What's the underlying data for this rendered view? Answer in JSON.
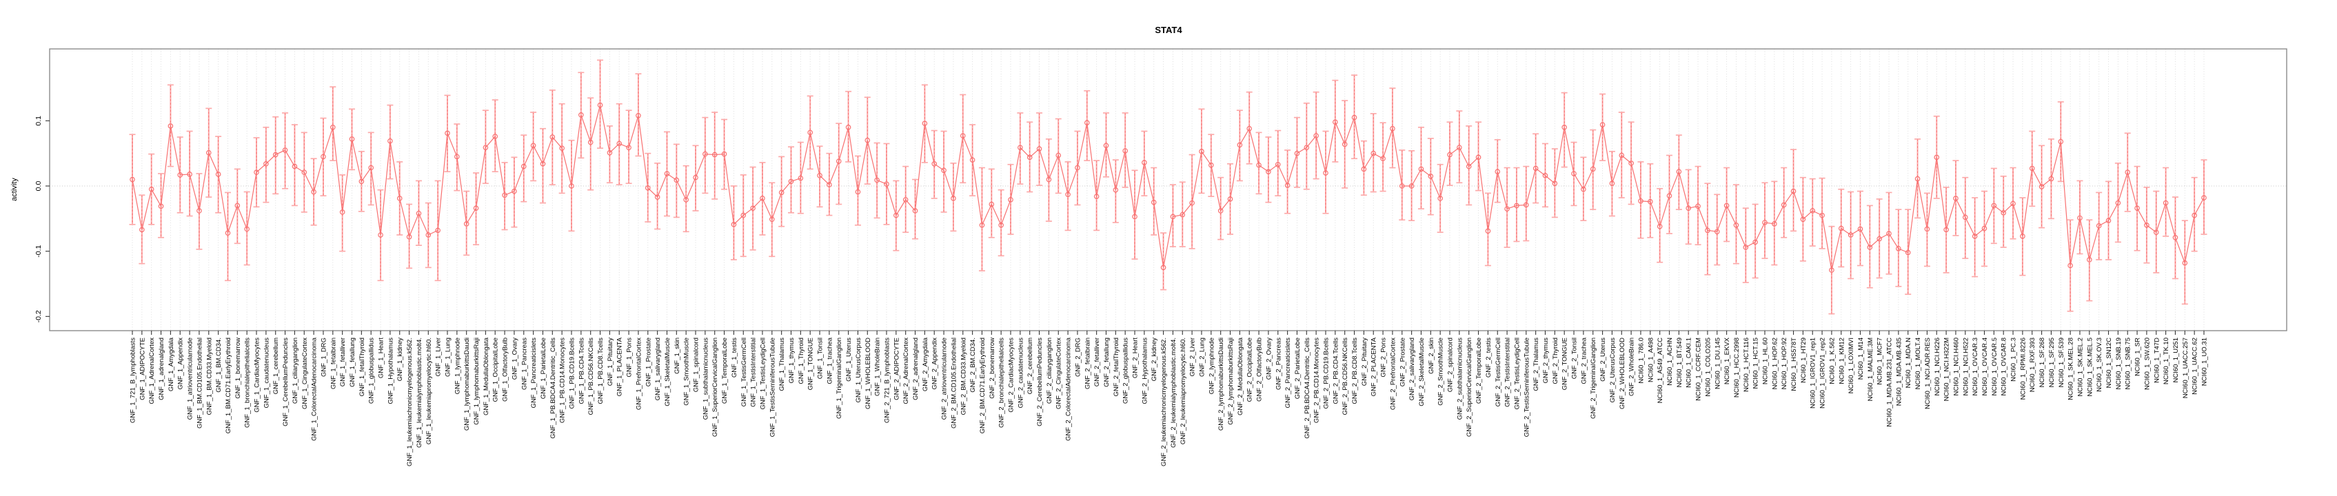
{
  "title": "STAT4",
  "chart_data": {
    "type": "scatter",
    "title": "STAT4",
    "xlabel": "",
    "ylabel": "activity",
    "ylim": [
      -0.225,
      0.21
    ],
    "yticks": [
      0.1,
      0.0,
      -0.1,
      -0.2
    ],
    "ytick_labels": [
      "0.1",
      "0.0",
      "-0.1",
      "-0.2"
    ],
    "grid": "dotted vertical line at every category; dotted horizontal line at y=0",
    "legend_position": "none",
    "marker": "open-circle",
    "error_bars": true,
    "colors": {
      "series": "#f87070",
      "errorbar": "#fcaaaa",
      "axis_box": "#8c8c8c",
      "grid": "#d9d9d9",
      "zero_line": "#c4c4c4",
      "tick": "#333333",
      "text": "#000000",
      "background": "#ffffff"
    },
    "categories": [
      "GNF_1_721_B_lymphoblasts",
      "GNF_1_ADIPOCYTE",
      "GNF_1_AdrenalCortex",
      "GNF_1_adrenalgland",
      "GNF_1_Amygdala",
      "GNF_1_Appendix",
      "GNF_1_atrioventricularnode",
      "GNF_1_BM.CD105.Endothelial",
      "GNF_1_BM.CD33.Myeloid",
      "GNF_1_BM.CD34.",
      "GNF_1_BM.CD71.EarlyErythroid",
      "GNF_1_bonemarrow",
      "GNF_1_bronchialepithelialcells",
      "GNF_1_CardiacMyocytes",
      "GNF_1_caudatenucleus",
      "GNF_1_cerebellum",
      "GNF_1_CerebellumPeduncles",
      "GNF_1_ciliaryganglion",
      "GNF_1_CingulateCortex",
      "GNF_1_ColorectalAdenocarcinoma",
      "GNF_1_DRG",
      "GNF_1_fetalbrain",
      "GNF_1_fetalliver",
      "GNF_1_fetallung",
      "GNF_1_fetalThyroid",
      "GNF_1_globuspallidus",
      "GNF_1_Heart",
      "GNF_1_Hypothalamus",
      "GNF_1_kidney",
      "GNF_1_leukemiachronicmyelogenous.k562.",
      "GNF_1_leukemialymphoblastic.molt4.",
      "GNF_1_leukemiapromyelocytic.hl60.",
      "GNF_1_Liver",
      "GNF_1_Lung",
      "GNF_1_lymphnode",
      "GNF_1_lymphomaburkittsDaudi",
      "GNF_1_lymphomaburkittsRaji",
      "GNF_1_MedullaOblongata",
      "GNF_1_OccipitalLobe",
      "GNF_1_OlfactoryBulb",
      "GNF_1_Ovary",
      "GNF_1_Pancreas",
      "GNF_1_Pancreaticislets",
      "GNF_1_ParietalLobe",
      "GNF_1_PB.BDCA4.Dentritic_Cells",
      "GNF_1_PB.CD14.Monocytes",
      "GNF_1_PB.CD19.Bcells",
      "GNF_1_PB.CD4.Tcells",
      "GNF_1_PB.CD56.NKCells",
      "GNF_1_PB.CD8.Tcells",
      "GNF_1_Pituitary",
      "GNF_1_PLACENTA",
      "GNF_1_Pons",
      "GNF_1_PrefrontalCortex",
      "GNF_1_Prostate",
      "GNF_1_salivarygland",
      "GNF_1_SkeletalMuscle",
      "GNF_1_skin",
      "GNF_1_SmoothMuscle",
      "GNF_1_spinalcord",
      "GNF_1_subthalamicnucleus",
      "GNF_1_SuperiorCervicalGanglion",
      "GNF_1_TemporalLobe",
      "GNF_1_testis",
      "GNF_1_TestisGermCell",
      "GNF_1_TestisInterstitial",
      "GNF_1_TestisLeydigCell",
      "GNF_1_TestisSeminiferousTubule",
      "GNF_1_Thalamus",
      "GNF_1_thymus",
      "GNF_1_Thyroid",
      "GNF_1_TONGUE",
      "GNF_1_Tonsil",
      "GNF_1_trachea",
      "GNF_1_TrigeminalGanglion",
      "GNF_1_Uterus",
      "GNF_1_UterusCorpus",
      "GNF_1_WHOLEBLOOD",
      "GNF_1_WholeBrain",
      "GNF_2_721_B_lymphoblasts",
      "GNF_2_ADIPOCYTE",
      "GNF_2_AdrenalCortex",
      "GNF_2_adrenalgland",
      "GNF_2_Amygdala",
      "GNF_2_Appendix",
      "GNF_2_atrioventricularnode",
      "GNF_2_BM.CD105.Endothelial",
      "GNF_2_BM.CD33.Myeloid",
      "GNF_2_BM.CD34.",
      "GNF_2_BM.CD71.EarlyErythroid",
      "GNF_2_bonemarrow",
      "GNF_2_bronchialepithelialcells",
      "GNF_2_CardiacMyocytes",
      "GNF_2_caudatenucleus",
      "GNF_2_cerebellum",
      "GNF_2_CerebellumPeduncles",
      "GNF_2_ciliaryganglion",
      "GNF_2_CingulateCortex",
      "GNF_2_ColorectalAdenocarcinoma",
      "GNF_2_DRG",
      "GNF_2_fetalbrain",
      "GNF_2_fetalliver",
      "GNF_2_fetallung",
      "GNF_2_fetalThyroid",
      "GNF_2_globuspallidus",
      "GNF_2_Heart",
      "GNF_2_Hypothalamus",
      "GNF_2_kidney",
      "GNF_2_leukemiachronicmyelogenous.k562.",
      "GNF_2_leukemialymphoblastic.molt4.",
      "GNF_2_leukemiapromyelocytic.hl60.",
      "GNF_2_Liver",
      "GNF_2_Lung",
      "GNF_2_lymphnode",
      "GNF_2_lymphomaburkittsDaudi",
      "GNF_2_lymphomaburkittsRaji",
      "GNF_2_MedullaOblongata",
      "GNF_2_OccipitalLobe",
      "GNF_2_OlfactoryBulb",
      "GNF_2_Ovary",
      "GNF_2_Pancreas",
      "GNF_2_Pancreaticislets",
      "GNF_2_ParietalLobe",
      "GNF_2_PB.BDCA4.Dentritic_Cells",
      "GNF_2_PB.CD14.Monocytes",
      "GNF_2_PB.CD19.Bcells",
      "GNF_2_PB.CD4.Tcells",
      "GNF_2_PB.CD56.NKCells",
      "GNF_2_PB.CD8.Tcells",
      "GNF_2_Pituitary",
      "GNF_2_PLACENTA",
      "GNF_2_Pons",
      "GNF_2_PrefrontalCortex",
      "GNF_2_Prostate",
      "GNF_2_salivarygland",
      "GNF_2_SkeletalMuscle",
      "GNF_2_skin",
      "GNF_2_SmoothMuscle",
      "GNF_2_spinalcord",
      "GNF_2_subthalamicnucleus",
      "GNF_2_SuperiorCervicalGanglion",
      "GNF_2_TemporalLobe",
      "GNF_2_testis",
      "GNF_2_TestisGermCell",
      "GNF_2_TestisInterstitial",
      "GNF_2_TestisLeydigCell",
      "GNF_2_TestisSeminiferousTubule",
      "GNF_2_Thalamus",
      "GNF_2_thymus",
      "GNF_2_Thyroid",
      "GNF_2_TONGUE",
      "GNF_2_Tonsil",
      "GNF_2_trachea",
      "GNF_2_TrigeminalGanglion",
      "GNF_2_Uterus",
      "GNF_2_UterusCorpus",
      "GNF_2_WHOLEBLOOD",
      "GNF_2_WholeBrain",
      "NCI60_1_786.0",
      "NCI60_1_A498",
      "NCI60_1_A549_ATCC",
      "NCI60_1_ACHN",
      "NCI60_1_BT.549",
      "NCI60_1_CAKI.1",
      "NCI60_1_CCRF.CEM",
      "NCI60_1_COLO205",
      "NCI60_1_DU.145",
      "NCI60_1_EKVX",
      "NCI60_1_HCC.2998",
      "NCI60_1_HCT.116",
      "NCI60_1_HCT.15",
      "NCI60_1_HL.60",
      "NCI60_1_HOP.62",
      "NCI60_1_HOP.92",
      "NCI60_1_HS578T",
      "NCI60_1_HT29",
      "NCI60_1_IGROV1_rep1",
      "NCI60_1_IGROV1_rep2",
      "NCI60_1_K.562",
      "NCI60_1_KM12",
      "NCI60_1_LOXIMVI",
      "NCI60_1_M14",
      "NCI60_1_MALME.3M",
      "NCI60_1_MCF7",
      "NCI60_1_MDA.MB.231_ATCC",
      "NCI60_1_MDA.MB.435",
      "NCI60_1_MDA.N",
      "NCI60_1_MOLT.4",
      "NCI60_1_NCI.ADR.RES",
      "NCI60_1_NCI.H226",
      "NCI60_1_NCI.H322M",
      "NCI60_1_NCI.H460",
      "NCI60_1_NCI.H522",
      "NCI60_1_OVCAR.3",
      "NCI60_1_OVCAR.4",
      "NCI60_1_OVCAR.5",
      "NCI60_1_OVCAR.8",
      "NCI60_1_PC.3",
      "NCI60_1_RPMI.8226",
      "NCI60_1_RXF.393",
      "NCI60_1_SF.268",
      "NCI60_1_SF.295",
      "NCI60_1_SF.539",
      "NCI60_1_SK.MEL.28",
      "NCI60_1_SK.MEL.2",
      "NCI60_1_SK.MEL.5",
      "NCI60_1_SK.OV.3",
      "NCI60_1_SN12C",
      "NCI60_1_SNB.19",
      "NCI60_1_SNB.75",
      "NCI60_1_SR",
      "NCI60_1_SW.620",
      "NCI60_1_T47D",
      "NCI60_1_TK.10",
      "NCI60_1_U251",
      "NCI60_1_UACC.257",
      "NCI60_1_UACC.62",
      "NCI60_1_UO.31"
    ],
    "series": [
      {
        "name": "activity",
        "values": [
          0.01,
          -0.067,
          -0.005,
          -0.031,
          0.092,
          0.017,
          0.018,
          -0.038,
          0.051,
          0.018,
          -0.072,
          -0.03,
          -0.066,
          0.021,
          0.034,
          0.048,
          0.055,
          0.03,
          0.021,
          -0.009,
          0.045,
          0.09,
          -0.04,
          0.072,
          0.007,
          0.028,
          -0.075,
          0.069,
          -0.019,
          -0.078,
          -0.042,
          -0.075,
          -0.068,
          0.081,
          0.045,
          -0.058,
          -0.034,
          0.059,
          0.076,
          -0.014,
          -0.008,
          0.03,
          0.062,
          0.034,
          0.075,
          0.058,
          0.0,
          0.109,
          0.067,
          0.124,
          0.051,
          0.065,
          0.059,
          0.108,
          -0.003,
          -0.017,
          0.019,
          0.009,
          -0.021,
          0.013,
          0.049,
          0.048,
          0.049,
          -0.059,
          -0.045,
          -0.034,
          -0.019,
          -0.051,
          -0.01,
          0.007,
          0.012,
          0.082,
          0.016,
          0.002,
          0.038,
          0.09,
          -0.009,
          0.07,
          0.009,
          0.003,
          -0.045,
          -0.021,
          -0.038,
          0.096,
          0.034,
          0.024,
          -0.019,
          0.077,
          0.04,
          -0.06,
          -0.028,
          -0.06,
          -0.021,
          0.059,
          0.044,
          0.057,
          0.01,
          0.047,
          -0.013,
          0.028,
          0.097,
          -0.016,
          0.062,
          -0.006,
          0.054,
          -0.047,
          0.036,
          -0.025,
          -0.125,
          -0.047,
          -0.044,
          -0.026,
          0.053,
          0.032,
          -0.038,
          -0.02,
          0.063,
          0.088,
          0.032,
          0.022,
          0.033,
          0.001,
          0.05,
          0.059,
          0.077,
          0.02,
          0.098,
          0.064,
          0.105,
          0.026,
          0.05,
          0.042,
          0.088,
          0.0,
          0.0,
          0.026,
          0.015,
          -0.019,
          0.048,
          0.059,
          0.03,
          0.044,
          -0.069,
          0.022,
          -0.035,
          -0.03,
          -0.029,
          0.027,
          0.016,
          0.004,
          0.09,
          0.019,
          -0.005,
          0.026,
          0.094,
          0.004,
          0.047,
          0.035,
          -0.023,
          -0.024,
          -0.062,
          -0.015,
          0.022,
          -0.034,
          -0.031,
          -0.068,
          -0.07,
          -0.03,
          -0.06,
          -0.094,
          -0.086,
          -0.056,
          -0.058,
          -0.029,
          -0.008,
          -0.051,
          -0.038,
          -0.045,
          -0.129,
          -0.065,
          -0.075,
          -0.066,
          -0.094,
          -0.081,
          -0.073,
          -0.096,
          -0.102,
          0.011,
          -0.066,
          0.044,
          -0.067,
          -0.019,
          -0.048,
          -0.077,
          -0.065,
          -0.03,
          -0.041,
          -0.027,
          -0.077,
          0.027,
          -0.001,
          0.011,
          0.068,
          -0.122,
          -0.049,
          -0.113,
          -0.061,
          -0.053,
          -0.026,
          0.021,
          -0.034,
          -0.06,
          -0.071,
          -0.026,
          -0.079,
          -0.118,
          -0.045,
          -0.018
        ],
        "ci_high": [
          0.079,
          -0.014,
          0.049,
          0.019,
          0.155,
          0.075,
          0.084,
          0.019,
          0.119,
          0.076,
          -0.01,
          0.026,
          -0.009,
          0.074,
          0.09,
          0.106,
          0.112,
          0.094,
          0.082,
          0.042,
          0.104,
          0.152,
          0.017,
          0.118,
          0.053,
          0.082,
          -0.006,
          0.124,
          0.037,
          -0.028,
          0.008,
          -0.026,
          0.008,
          0.139,
          0.095,
          -0.008,
          0.02,
          0.116,
          0.132,
          0.036,
          0.044,
          0.078,
          0.113,
          0.088,
          0.147,
          0.126,
          0.07,
          0.174,
          0.135,
          0.193,
          0.092,
          0.126,
          0.116,
          0.172,
          0.05,
          0.035,
          0.083,
          0.064,
          0.031,
          0.062,
          0.105,
          0.113,
          0.102,
          0.0,
          0.017,
          0.029,
          0.036,
          0.005,
          0.045,
          0.06,
          0.067,
          0.138,
          0.061,
          0.05,
          0.096,
          0.145,
          0.046,
          0.136,
          0.066,
          0.065,
          0.008,
          0.03,
          0.01,
          0.155,
          0.085,
          0.084,
          0.035,
          0.14,
          0.094,
          0.028,
          0.026,
          -0.006,
          0.033,
          0.112,
          0.098,
          0.112,
          0.072,
          0.103,
          0.037,
          0.084,
          0.146,
          0.039,
          0.112,
          0.04,
          0.112,
          0.024,
          0.084,
          0.028,
          -0.072,
          0.002,
          0.006,
          0.048,
          0.118,
          0.079,
          0.013,
          0.034,
          0.116,
          0.144,
          0.082,
          0.075,
          0.085,
          0.055,
          0.105,
          0.127,
          0.144,
          0.084,
          0.162,
          0.131,
          0.17,
          0.069,
          0.111,
          0.097,
          0.15,
          0.055,
          0.054,
          0.09,
          0.073,
          0.033,
          0.098,
          0.115,
          0.092,
          0.098,
          -0.011,
          0.071,
          0.028,
          0.028,
          0.03,
          0.08,
          0.065,
          0.057,
          0.143,
          0.067,
          0.044,
          0.086,
          0.141,
          0.053,
          0.113,
          0.098,
          0.037,
          0.034,
          -0.004,
          0.047,
          0.078,
          0.025,
          0.03,
          0.004,
          -0.013,
          0.028,
          0.002,
          -0.034,
          -0.028,
          0.005,
          0.007,
          0.028,
          0.056,
          0.013,
          0.011,
          0.012,
          -0.062,
          -0.005,
          -0.009,
          -0.008,
          -0.03,
          -0.02,
          -0.01,
          -0.036,
          -0.036,
          0.072,
          -0.011,
          0.107,
          -0.002,
          0.039,
          0.013,
          -0.018,
          -0.008,
          0.027,
          0.015,
          0.028,
          -0.018,
          0.084,
          0.062,
          0.072,
          0.129,
          -0.052,
          0.008,
          -0.052,
          -0.01,
          0.007,
          0.035,
          0.081,
          0.03,
          -0.002,
          -0.008,
          0.028,
          -0.017,
          -0.053,
          0.013,
          0.04
        ],
        "ci_low": [
          -0.059,
          -0.119,
          -0.059,
          -0.079,
          0.03,
          -0.041,
          -0.046,
          -0.097,
          -0.017,
          -0.041,
          -0.145,
          -0.088,
          -0.121,
          -0.032,
          -0.025,
          -0.012,
          -0.004,
          -0.03,
          -0.04,
          -0.06,
          -0.015,
          0.039,
          -0.1,
          0.025,
          -0.039,
          -0.029,
          -0.145,
          0.011,
          -0.075,
          -0.126,
          -0.091,
          -0.125,
          -0.145,
          0.022,
          -0.007,
          -0.106,
          -0.09,
          0.004,
          0.022,
          -0.067,
          -0.063,
          -0.024,
          0.008,
          -0.026,
          0.002,
          -0.011,
          -0.069,
          0.043,
          -0.006,
          0.058,
          0.005,
          0.002,
          0.004,
          0.046,
          -0.055,
          -0.066,
          -0.046,
          -0.048,
          -0.07,
          -0.038,
          -0.011,
          -0.02,
          -0.005,
          -0.113,
          -0.108,
          -0.098,
          -0.075,
          -0.108,
          -0.062,
          -0.041,
          -0.042,
          0.026,
          -0.032,
          -0.045,
          -0.028,
          0.037,
          -0.06,
          0.003,
          -0.049,
          -0.059,
          -0.099,
          -0.071,
          -0.081,
          0.036,
          -0.019,
          -0.04,
          -0.069,
          0.005,
          -0.015,
          -0.13,
          -0.079,
          -0.107,
          -0.074,
          0.003,
          -0.009,
          0.001,
          -0.054,
          -0.011,
          -0.068,
          -0.029,
          0.039,
          -0.068,
          0.014,
          -0.056,
          -0.002,
          -0.112,
          -0.015,
          -0.075,
          -0.159,
          -0.093,
          -0.093,
          -0.096,
          -0.011,
          -0.016,
          -0.082,
          -0.074,
          0.008,
          0.034,
          -0.012,
          -0.025,
          -0.015,
          -0.042,
          -0.002,
          -0.005,
          0.011,
          -0.042,
          0.037,
          -0.003,
          0.042,
          -0.014,
          -0.009,
          -0.008,
          0.028,
          -0.052,
          -0.053,
          -0.035,
          -0.044,
          -0.071,
          0.001,
          0.005,
          -0.029,
          -0.007,
          -0.122,
          -0.025,
          -0.094,
          -0.085,
          -0.084,
          -0.026,
          -0.032,
          -0.048,
          0.029,
          -0.03,
          -0.053,
          -0.036,
          0.039,
          -0.046,
          -0.018,
          -0.028,
          -0.08,
          -0.079,
          -0.117,
          -0.073,
          -0.036,
          -0.089,
          -0.09,
          -0.136,
          -0.121,
          -0.085,
          -0.119,
          -0.148,
          -0.141,
          -0.111,
          -0.121,
          -0.079,
          -0.069,
          -0.115,
          -0.092,
          -0.096,
          -0.196,
          -0.124,
          -0.142,
          -0.122,
          -0.156,
          -0.141,
          -0.135,
          -0.154,
          -0.166,
          -0.049,
          -0.123,
          -0.019,
          -0.133,
          -0.076,
          -0.111,
          -0.139,
          -0.123,
          -0.088,
          -0.094,
          -0.081,
          -0.137,
          -0.031,
          -0.064,
          -0.05,
          0.007,
          -0.192,
          -0.104,
          -0.176,
          -0.113,
          -0.113,
          -0.086,
          -0.039,
          -0.099,
          -0.118,
          -0.133,
          -0.077,
          -0.142,
          -0.181,
          -0.1,
          -0.074
        ]
      }
    ]
  }
}
